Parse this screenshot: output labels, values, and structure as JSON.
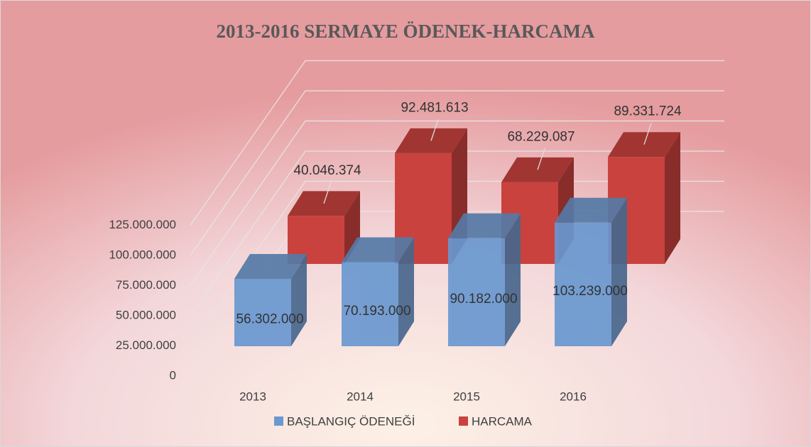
{
  "chart_data": {
    "type": "bar3d",
    "title": "2013-2016 SERMAYE ÖDENEK-HARCAMA",
    "categories": [
      "2013",
      "2014",
      "2015",
      "2016"
    ],
    "series": [
      {
        "name": "BAŞLANGIÇ ÖDENEĞİ",
        "color": "#6a98d0",
        "values": [
          56302000,
          70193000,
          90182000,
          103239000
        ],
        "value_labels": [
          "56.302.000",
          "70.193.000",
          "90.182.000",
          "103.239.000"
        ]
      },
      {
        "name": "HARCAMA",
        "color": "#c9423e",
        "values": [
          40046374,
          92481613,
          68229087,
          89331724
        ],
        "value_labels": [
          "40.046.374",
          "92.481.613",
          "68.229.087",
          "89.331.724"
        ]
      }
    ],
    "ylim": [
      0,
      125000000
    ],
    "yticks": [
      0,
      {
        "value": 25000000,
        "label": "25.000.000"
      },
      {
        "value": 50000000,
        "label": "50.000.000"
      },
      {
        "value": 75000000,
        "label": "75.000.000"
      },
      {
        "value": 100000000,
        "label": "100.000.000"
      },
      {
        "value": 125000000,
        "label": "125.000.000"
      }
    ],
    "grid": true,
    "legend": "bottom"
  }
}
